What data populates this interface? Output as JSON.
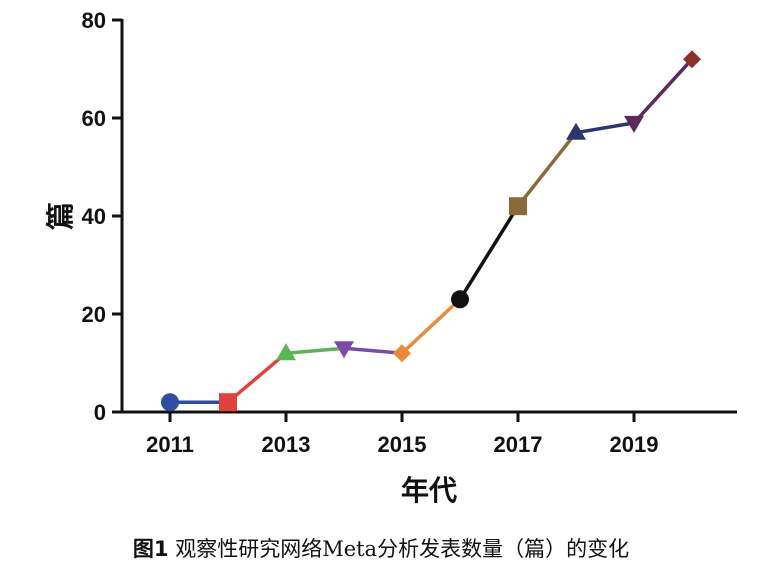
{
  "chart_data": {
    "type": "line",
    "title": "",
    "xlabel": "年代",
    "ylabel": "篇",
    "x": [
      2011,
      2012,
      2013,
      2014,
      2015,
      2016,
      2017,
      2018,
      2019,
      2020
    ],
    "values": [
      2,
      2,
      12,
      13,
      12,
      23,
      42,
      57,
      59,
      72
    ],
    "point_colors": [
      "#2f4ea3",
      "#e0413a",
      "#5ab552",
      "#7a4ba6",
      "#ec8a3c",
      "#111111",
      "#8b6a3a",
      "#2b3570",
      "#5a2a5c",
      "#8e2f2f"
    ],
    "markers": [
      "circle",
      "square",
      "triangle-up",
      "triangle-down",
      "diamond",
      "circle",
      "square",
      "triangle-up",
      "triangle-down",
      "diamond"
    ],
    "xticks": [
      "2011",
      "2013",
      "2015",
      "2017",
      "2019"
    ],
    "yticks": [
      "0",
      "20",
      "40",
      "60",
      "80"
    ],
    "xlim": [
      2010.2,
      2020.8
    ],
    "ylim": [
      0,
      80
    ],
    "grid": false
  },
  "caption": {
    "label": "图1",
    "text": " 观察性研究网络Meta分析发表数量（篇）的变化"
  }
}
